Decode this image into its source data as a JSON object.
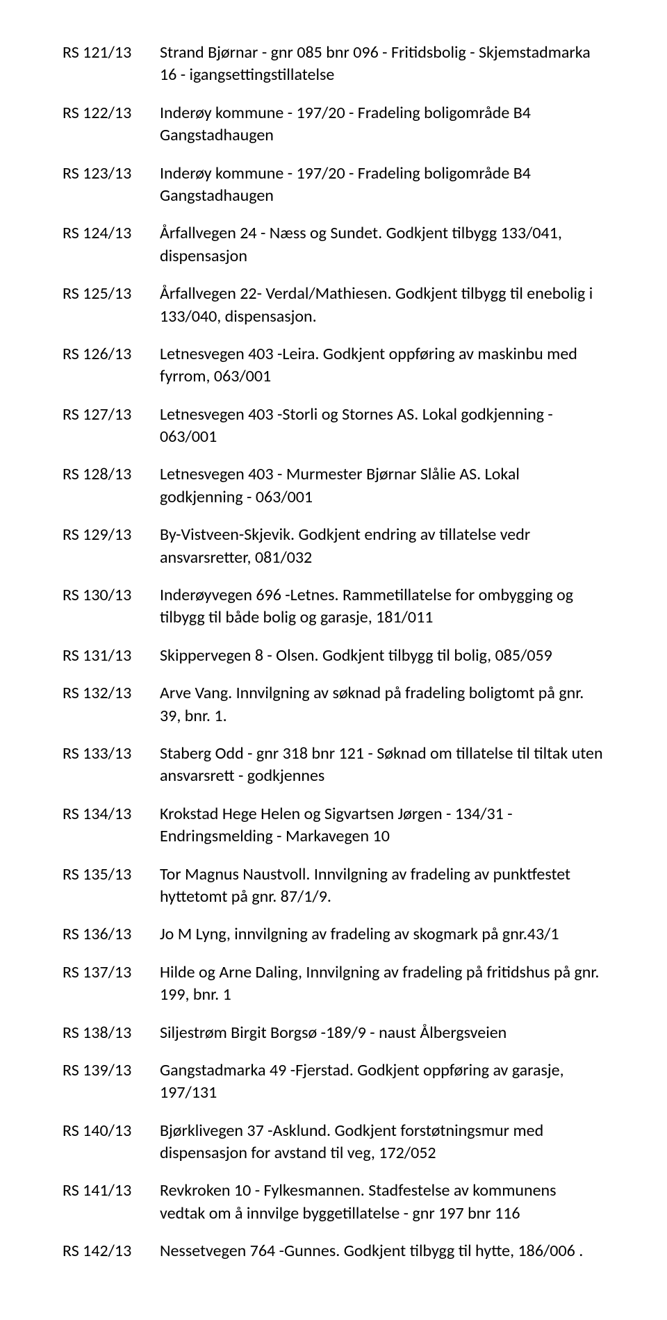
{
  "items": [
    {
      "ref": "RS 121/13",
      "desc": "Strand Bjørnar - gnr 085 bnr 096 - Fritidsbolig - Skjemstadmarka 16 - igangsettingstillatelse"
    },
    {
      "ref": "RS 122/13",
      "desc": "Inderøy kommune - 197/20 - Fradeling boligområde B4 Gangstadhaugen"
    },
    {
      "ref": "RS 123/13",
      "desc": "Inderøy kommune - 197/20 - Fradeling boligområde B4 Gangstadhaugen"
    },
    {
      "ref": "RS 124/13",
      "desc": "Årfallvegen 24 - Næss og Sundet. Godkjent tilbygg 133/041, dispensasjon"
    },
    {
      "ref": "RS 125/13",
      "desc": "Årfallvegen 22- Verdal/Mathiesen. Godkjent tilbygg til enebolig i  133/040, dispensasjon."
    },
    {
      "ref": "RS 126/13",
      "desc": "Letnesvegen 403 -Leira. Godkjent oppføring av maskinbu med fyrrom,  063/001"
    },
    {
      "ref": "RS 127/13",
      "desc": "Letnesvegen 403 -Storli og Stornes AS. Lokal godkjenning - 063/001"
    },
    {
      "ref": "RS 128/13",
      "desc": "Letnesvegen 403 - Murmester Bjørnar Slålie AS. Lokal godkjenning - 063/001"
    },
    {
      "ref": "RS 129/13",
      "desc": "By-Vistveen-Skjevik. Godkjent endring av tillatelse vedr ansvarsretter, 081/032"
    },
    {
      "ref": "RS 130/13",
      "desc": "Inderøyvegen 696 -Letnes. Rammetillatelse for ombygging og tilbygg til både bolig og garasje,  181/011"
    },
    {
      "ref": "RS 131/13",
      "desc": "Skippervegen 8 - Olsen. Godkjent tilbygg til bolig, 085/059"
    },
    {
      "ref": "RS 132/13",
      "desc": "Arve Vang. Innvilgning av søknad på fradeling boligtomt på gnr. 39, bnr. 1."
    },
    {
      "ref": "RS 133/13",
      "desc": "Staberg Odd - gnr 318 bnr 121 - Søknad om tillatelse til tiltak uten ansvarsrett - godkjennes"
    },
    {
      "ref": "RS 134/13",
      "desc": "Krokstad Hege Helen og Sigvartsen Jørgen - 134/31 - Endringsmelding - Markavegen 10"
    },
    {
      "ref": "RS 135/13",
      "desc": "Tor Magnus Naustvoll. Innvilgning av fradeling av punktfestet hyttetomt på gnr. 87/1/9."
    },
    {
      "ref": "RS 136/13",
      "desc": "Jo M Lyng, innvilgning av fradeling av skogmark på gnr.43/1"
    },
    {
      "ref": "RS 137/13",
      "desc": "Hilde og Arne Daling, Innvilgning av fradeling på fritidshus på gnr. 199, bnr. 1"
    },
    {
      "ref": "RS 138/13",
      "desc": "Siljestrøm Birgit Borgsø -189/9 - naust Ålbergsveien"
    },
    {
      "ref": "RS 139/13",
      "desc": "Gangstadmarka 49 -Fjerstad. Godkjent oppføring av garasje, 197/131"
    },
    {
      "ref": "RS 140/13",
      "desc": "Bjørklivegen 37 -Asklund. Godkjent forstøtningsmur med dispensasjon for avstand til veg, 172/052"
    },
    {
      "ref": "RS 141/13",
      "desc": "Revkroken 10 - Fylkesmannen. Stadfestelse av kommunens vedtak om å innvilge byggetillatelse -  gnr 197 bnr 116"
    },
    {
      "ref": "RS 142/13",
      "desc": "Nessetvegen 764 -Gunnes. Godkjent tilbygg til hytte, 186/006 ."
    }
  ]
}
